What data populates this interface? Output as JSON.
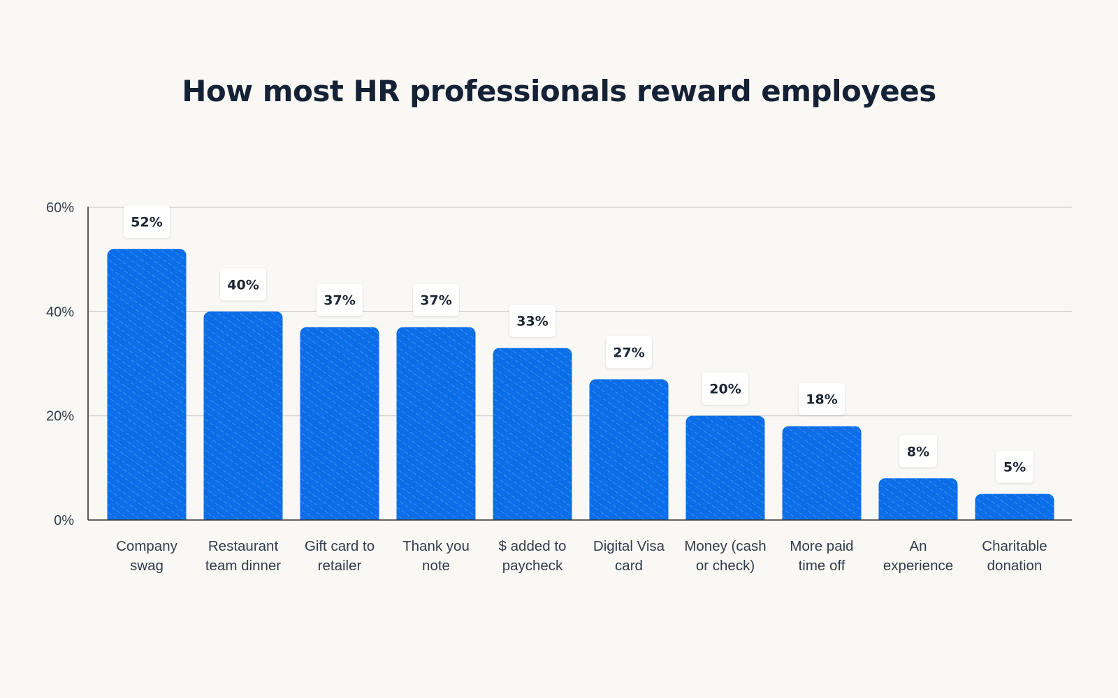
{
  "chart_data": {
    "type": "bar",
    "title": "How most HR professionals reward employees",
    "xlabel": "",
    "ylabel": "",
    "ylim": [
      0,
      60
    ],
    "y_ticks": [
      "0%",
      "20%",
      "40%",
      "60%"
    ],
    "y_tick_values": [
      0,
      20,
      40,
      60
    ],
    "grid": true,
    "categories": [
      [
        "Company",
        "swag"
      ],
      [
        "Restaurant",
        "team dinner"
      ],
      [
        "Gift card to",
        "retailer"
      ],
      [
        "Thank you",
        "note"
      ],
      [
        "$ added to",
        "paycheck"
      ],
      [
        "Digital Visa",
        "card"
      ],
      [
        "Money (cash",
        "or check)"
      ],
      [
        "More paid",
        "time off"
      ],
      [
        "An",
        "experience"
      ],
      [
        "Charitable",
        "donation"
      ]
    ],
    "values": [
      52,
      40,
      37,
      37,
      33,
      27,
      20,
      18,
      8,
      5
    ],
    "value_labels": [
      "52%",
      "40%",
      "37%",
      "37%",
      "33%",
      "27%",
      "20%",
      "18%",
      "8%",
      "5%"
    ],
    "colors": {
      "bar": "#0b6ee8",
      "bar_texture": "#5aa0f4",
      "grid": "#cfcfcf",
      "axis": "#333333",
      "label_box": "#ffffff"
    }
  }
}
